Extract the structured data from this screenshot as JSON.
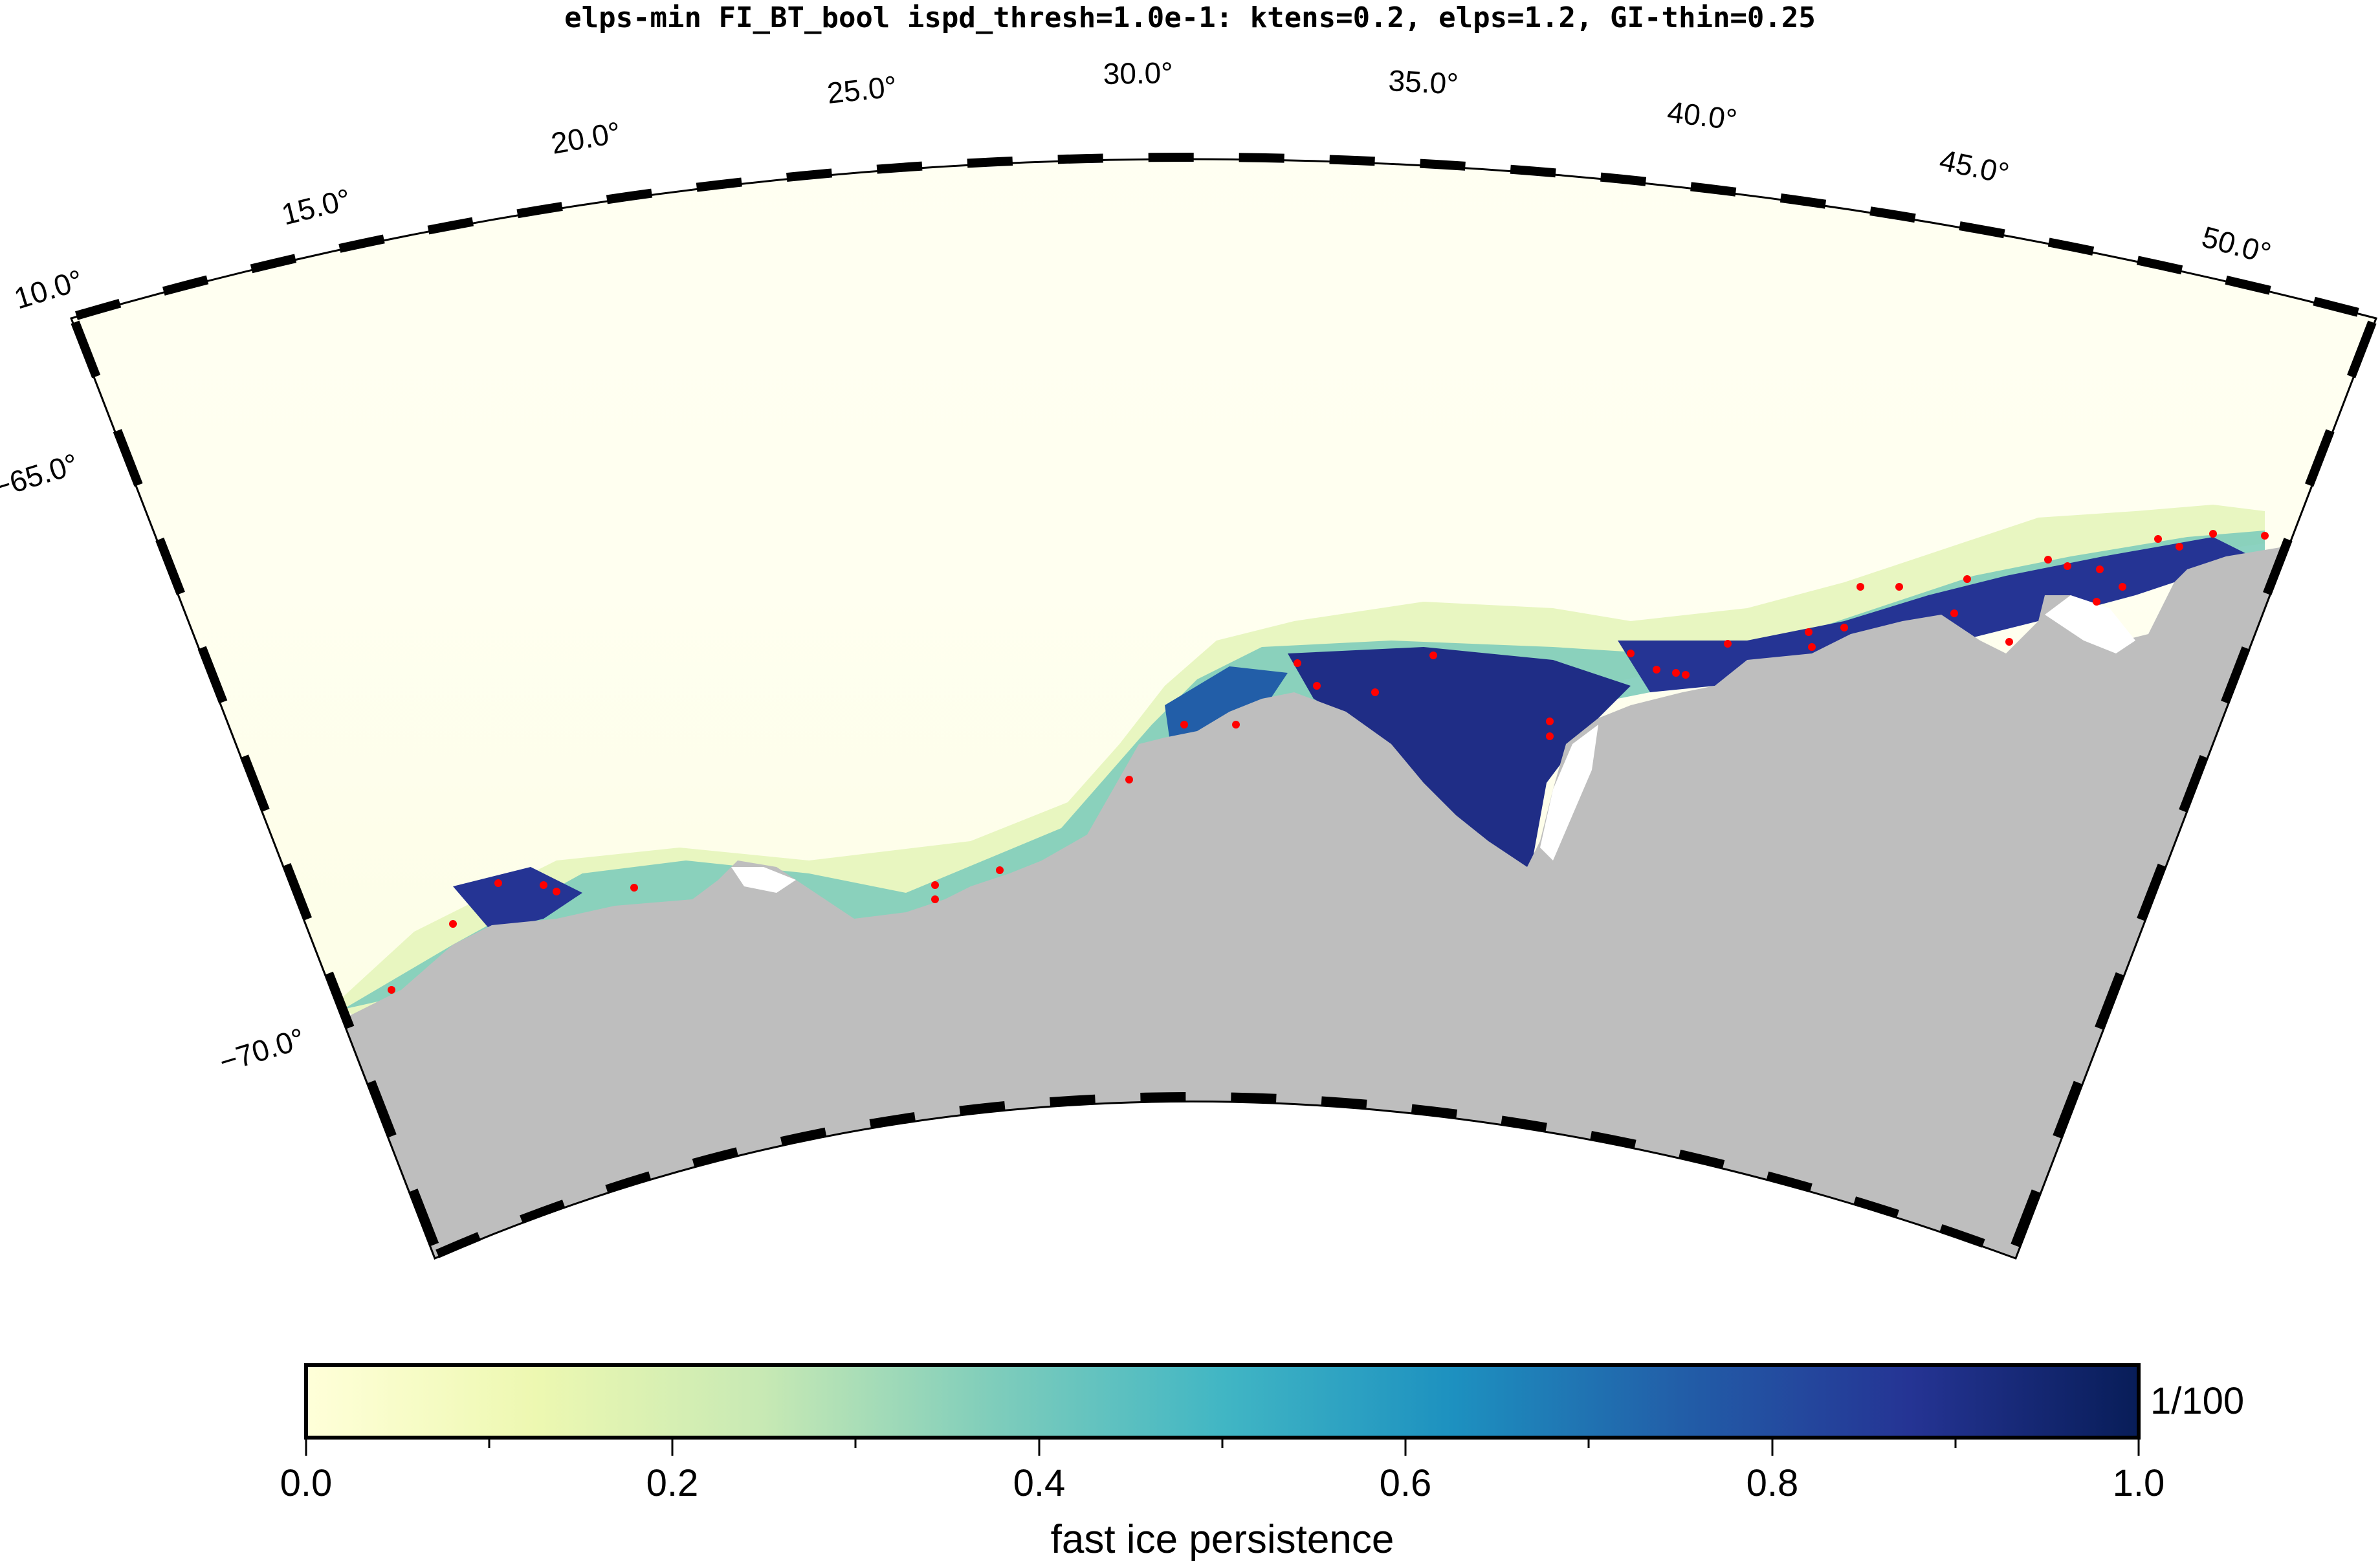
{
  "title": "elps-min FI_BT_bool ispd_thresh=1.0e-1: ktens=0.2, elps=1.2, GI-thin=0.25",
  "map": {
    "region": "Antarctic coast",
    "projection": "polar stereographic / conic sector",
    "lon_range": [
      10.0,
      52.0
    ],
    "lat_range": [
      -72.0,
      -62.0
    ],
    "lon_tick_labels": [
      "10.0°",
      "15.0°",
      "20.0°",
      "25.0°",
      "30.0°",
      "35.0°",
      "40.0°",
      "45.0°",
      "50.0°"
    ],
    "lat_tick_labels": [
      "−65.0°",
      "−70.0°"
    ],
    "colors": {
      "land": "#bebebe",
      "ocean_low": "#fffff2",
      "ice_high": "#1f2d86",
      "grounded_iceberg_marker": "#ff0000"
    }
  },
  "colorbar": {
    "label": "fast ice persistence",
    "tick_labels": [
      "0.0",
      "0.2",
      "0.4",
      "0.6",
      "0.8",
      "1.0"
    ],
    "range": [
      0.0,
      1.0
    ],
    "unit_label": "1/100",
    "palette": [
      "#ffffd9",
      "#edf8b1",
      "#c7e9b4",
      "#7fcdbb",
      "#41b6c4",
      "#1d91c0",
      "#225ea8",
      "#253494",
      "#081d58"
    ]
  }
}
